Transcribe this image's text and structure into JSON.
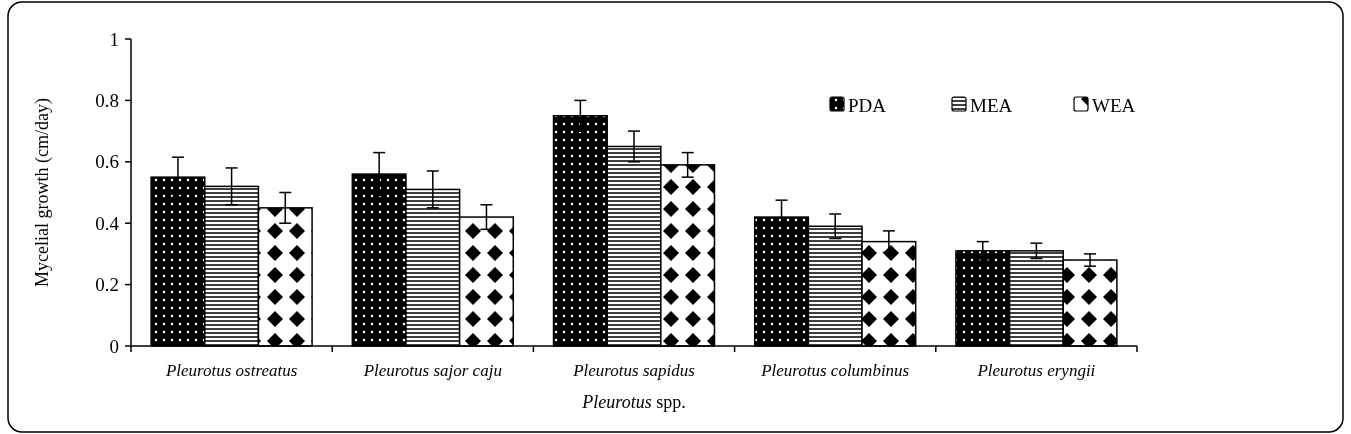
{
  "chart_data": {
    "type": "bar",
    "xlabel": "Pleurotus spp.",
    "ylabel": "Mycelial growth  (cm/day)",
    "categories": [
      "Pleurotus ostreatus",
      "Pleurotus sajor caju",
      "Pleurotus sapidus",
      "Pleurotus columbinus",
      "Pleurotus eryngii"
    ],
    "series": [
      {
        "name": "PDA",
        "color": "#000000",
        "values": [
          0.55,
          0.56,
          0.75,
          0.42,
          0.31
        ],
        "errors": [
          0.065,
          0.07,
          0.05,
          0.055,
          0.03
        ]
      },
      {
        "name": "MEA",
        "color": "#000000",
        "values": [
          0.52,
          0.51,
          0.65,
          0.39,
          0.31
        ],
        "errors": [
          0.06,
          0.06,
          0.05,
          0.04,
          0.025
        ]
      },
      {
        "name": "WEA",
        "color": "#000000",
        "values": [
          0.45,
          0.42,
          0.59,
          0.34,
          0.28
        ],
        "errors": [
          0.05,
          0.04,
          0.04,
          0.035,
          0.02
        ]
      }
    ],
    "ylim": [
      0,
      1
    ],
    "yticks": [
      0,
      {
        "value": 0.2,
        "label": "0.2"
      },
      {
        "value": 0.4,
        "label": "0.4"
      },
      {
        "value": 0.6,
        "label": "0.6"
      },
      {
        "value": 0.8,
        "label": "0.8"
      },
      1
    ],
    "grid": false,
    "legend": "top right"
  }
}
